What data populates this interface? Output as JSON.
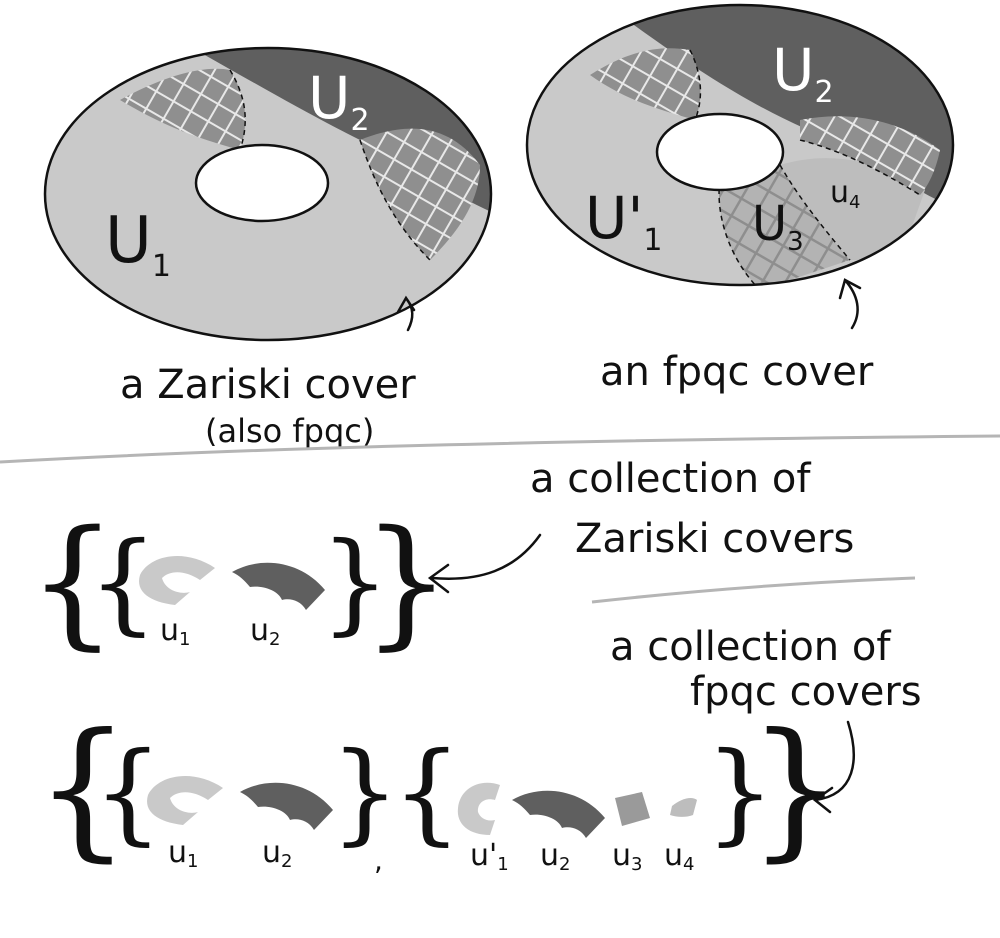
{
  "top": {
    "left_torus": {
      "u2": {
        "base": "U",
        "sub": "2"
      },
      "u1": {
        "base": "U",
        "sub": "1"
      },
      "caption": "a Zariski cover",
      "caption2": "(also fpqc)"
    },
    "right_torus": {
      "u2": {
        "base": "U",
        "sub": "2"
      },
      "u1p": {
        "base": "U'",
        "sub": "1"
      },
      "u3": {
        "base": "U",
        "sub": "3"
      },
      "u4": {
        "base": "u",
        "sub": "4"
      },
      "caption": "an fpqc cover"
    }
  },
  "bottom": {
    "zariski_label_line1": "a collection of",
    "zariski_label_line2": "Zariski covers",
    "fpqc_label_line1": "a collection of",
    "fpqc_label_line2": "fpqc covers",
    "row1": [
      {
        "base": "u",
        "sub": "1"
      },
      {
        "base": "u",
        "sub": "2"
      }
    ],
    "row2_first": [
      {
        "base": "u",
        "sub": "1"
      },
      {
        "base": "u",
        "sub": "2"
      }
    ],
    "row2_second": [
      {
        "base": "u'",
        "sub": "1"
      },
      {
        "base": "u",
        "sub": "2"
      },
      {
        "base": "u",
        "sub": "3"
      },
      {
        "base": "u",
        "sub": "4"
      }
    ],
    "separator": ","
  },
  "colors": {
    "light": "#c9c9c9",
    "dark": "#5f5f5f",
    "hole": "#ffffff",
    "ink": "#111111"
  }
}
